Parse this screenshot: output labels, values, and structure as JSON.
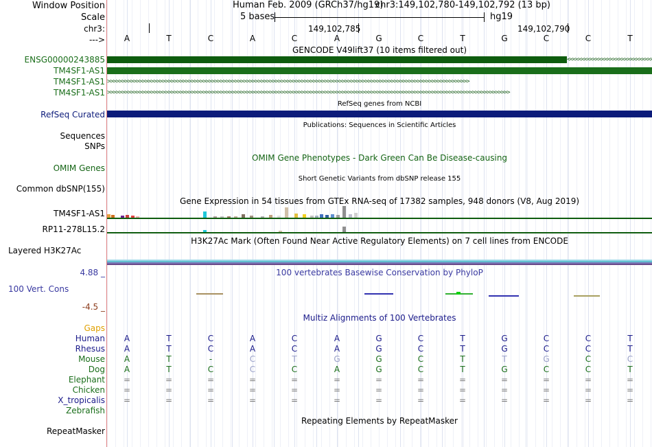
{
  "header": {
    "window_label": "Window Position",
    "scale_label": "Scale",
    "chr_label": "chr3:",
    "strand_label": "--->",
    "assembly": "Human Feb. 2009 (GRCh37/hg19)",
    "position": "chr3:149,102,780-149,102,792 (13 bp)",
    "scale_text": "5 bases",
    "db": "hg19",
    "coord_a": "149,102,785",
    "coord_b": "149,102,790"
  },
  "bases": [
    "A",
    "T",
    "C",
    "A",
    "C",
    "A",
    "G",
    "C",
    "T",
    "G",
    "C",
    "C",
    "T"
  ],
  "gencode": {
    "title": "GENCODE V49lift37 (10 items filtered out)",
    "items": [
      "ENSG00000243885",
      "TM4SF1-AS1",
      "TM4SF1-AS1",
      "TM4SF1-AS1"
    ],
    "colors": {
      "dark_green": "#0e5c0e",
      "green": "#1a6e1a"
    }
  },
  "refseq": {
    "label": "RefSeq Curated",
    "title": "RefSeq genes from NCBI",
    "color": "#0c1b7a"
  },
  "publications": {
    "title": "Publications: Sequences in Scientific Articles",
    "labels": [
      "Sequences",
      "SNPs"
    ]
  },
  "omim": {
    "label": "OMIM Genes",
    "title": "OMIM Gene Phenotypes - Dark Green Can Be Disease-causing",
    "color": "#146414"
  },
  "dbsnp": {
    "label": "Common dbSNP(155)",
    "title": "Short Genetic Variants from dbSNP release 155"
  },
  "gtex": {
    "title": "Gene Expression in 54 tissues from GTEx RNA-seq of 17382 samples, 948 donors (V8, Aug 2019)",
    "genes": [
      "TM4SF1-AS1",
      "RP11-278L15.2"
    ]
  },
  "h3k27ac": {
    "label": "Layered H3K27Ac",
    "title": "H3K27Ac Mark (Often Found Near Active Regulatory Elements) on 7 cell lines from ENCODE"
  },
  "cons": {
    "label": "100 Vert. Cons",
    "max": "4.88 _",
    "min": "-4.5 _",
    "title": "100 vertebrates Basewise Conservation by PhyloP",
    "color": "#3838a0",
    "min_color": "#8b3b1b"
  },
  "multiz": {
    "title": "Multiz Alignments of 100 Vertebrates",
    "gaps": "Gaps",
    "species": [
      {
        "name": "Human",
        "color": "#1a1a8a",
        "seq": [
          "A",
          "T",
          "C",
          "A",
          "C",
          "A",
          "G",
          "C",
          "T",
          "G",
          "C",
          "C",
          "T"
        ]
      },
      {
        "name": "Rhesus",
        "color": "#1a1a8a",
        "seq": [
          "A",
          "T",
          "C",
          "A",
          "C",
          "A",
          "G",
          "C",
          "T",
          "G",
          "C",
          "C",
          "T"
        ]
      },
      {
        "name": "Mouse",
        "color": "#1a6e1a",
        "seq": [
          "A",
          "T",
          "-",
          "C",
          "T",
          "G",
          "G",
          "C",
          "T",
          "T",
          "G",
          "C",
          "C"
        ]
      },
      {
        "name": "Dog",
        "color": "#1a6e1a",
        "seq": [
          "A",
          "T",
          "C",
          "C",
          "C",
          "A",
          "G",
          "C",
          "T",
          "G",
          "C",
          "C",
          "T"
        ]
      },
      {
        "name": "Elephant",
        "color": "#1a6e1a",
        "seq": [
          "=",
          "=",
          "=",
          "=",
          "=",
          "=",
          "=",
          "=",
          "=",
          "=",
          "=",
          "=",
          "="
        ]
      },
      {
        "name": "Chicken",
        "color": "#1a6e1a",
        "seq": [
          "=",
          "=",
          "=",
          "=",
          "=",
          "=",
          "=",
          "=",
          "=",
          "=",
          "=",
          "=",
          "="
        ]
      },
      {
        "name": "X_tropicalis",
        "color": "#1a1a8a",
        "seq": [
          "=",
          "=",
          "=",
          "=",
          "=",
          "=",
          "=",
          "=",
          "=",
          "=",
          "=",
          "=",
          "="
        ]
      },
      {
        "name": "Zebrafish",
        "color": "#1a6e1a",
        "seq": [
          "",
          "",
          "",
          "",
          "",
          "",
          "",
          "",
          "",
          "",
          "",
          "",
          ""
        ]
      }
    ]
  },
  "repeatmasker": {
    "label": "RepeatMasker",
    "title": "Repeating Elements by RepeatMasker"
  }
}
